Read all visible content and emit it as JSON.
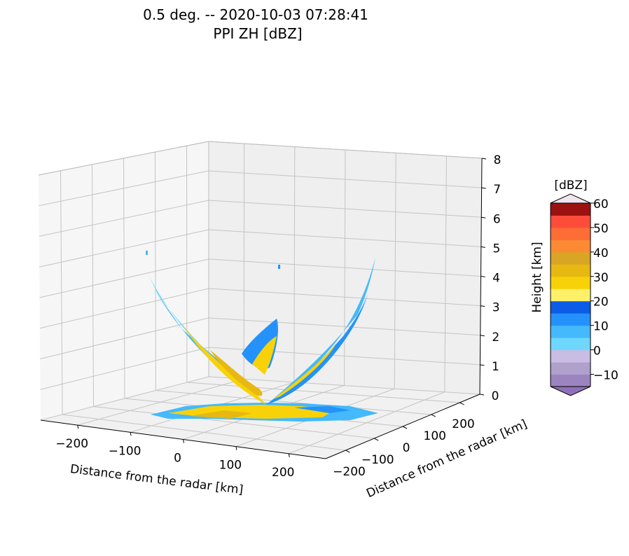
{
  "chart_data": {
    "type": "surface-3d",
    "title_line1": "0.5 deg. -- 2020-10-03 07:28:41",
    "title_line2": "PPI ZH [dBZ]",
    "xlabel": "Distance from the radar [km]",
    "ylabel": "Distance from the radar [km]",
    "zlabel": "Height [km]",
    "x_ticks": [
      "−200",
      "−100",
      "0",
      "100",
      "200"
    ],
    "y_ticks": [
      "−200",
      "−100",
      "0",
      "100",
      "200"
    ],
    "z_ticks": [
      "0",
      "1",
      "2",
      "3",
      "4",
      "5",
      "6",
      "7",
      "8"
    ],
    "xlim": [
      -270,
      270
    ],
    "ylim": [
      -270,
      270
    ],
    "zlim": [
      0,
      8
    ],
    "grid": true,
    "colorbar": {
      "label": "[dBZ]",
      "ticks": [
        "60",
        "50",
        "40",
        "30",
        "20",
        "10",
        "0",
        "−10"
      ],
      "levels": [
        -15,
        -10,
        -5,
        0,
        5,
        10,
        15,
        20,
        25,
        30,
        35,
        40,
        45,
        50,
        55,
        60
      ],
      "colors": [
        "#9c84c0",
        "#afa0cc",
        "#c9bde4",
        "#6fd7fc",
        "#44b9fc",
        "#2492fa",
        "#0c5ce8",
        "#fff06a",
        "#f8d208",
        "#e7b812",
        "#d8a524",
        "#fc8a34",
        "#fe6d35",
        "#fe4c3a",
        "#9b1111"
      ],
      "under_color": "#9070b8",
      "over_color": "#f3e5f0"
    }
  }
}
